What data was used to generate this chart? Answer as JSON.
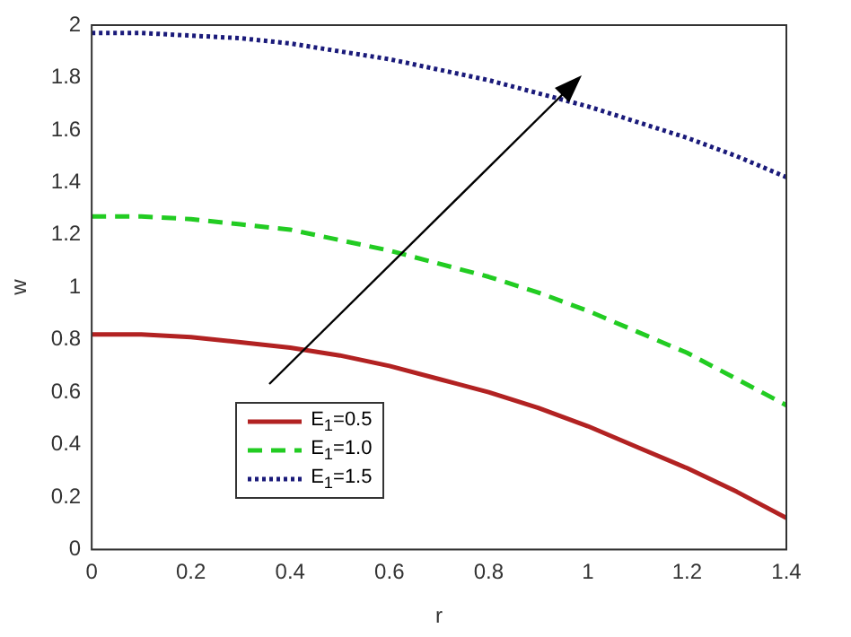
{
  "chart_data": {
    "type": "line",
    "xlabel": "r",
    "ylabel": "w",
    "x": [
      0,
      0.1,
      0.2,
      0.3,
      0.4,
      0.5,
      0.6,
      0.7,
      0.8,
      0.9,
      1.0,
      1.1,
      1.2,
      1.3,
      1.4
    ],
    "series": [
      {
        "name": "E$_{1}$=0.5",
        "color": "#b22222",
        "line_style": "solid",
        "values": [
          0.82,
          0.82,
          0.81,
          0.79,
          0.77,
          0.74,
          0.7,
          0.65,
          0.6,
          0.54,
          0.47,
          0.39,
          0.31,
          0.22,
          0.12
        ]
      },
      {
        "name": "E$_{1}$=1.0",
        "color": "#22cc22",
        "line_style": "dashed",
        "values": [
          1.27,
          1.27,
          1.26,
          1.24,
          1.22,
          1.18,
          1.14,
          1.09,
          1.04,
          0.98,
          0.91,
          0.83,
          0.75,
          0.65,
          0.55
        ]
      },
      {
        "name": "E$_{1}$=1.5",
        "color": "#1a1a7a",
        "line_style": "dotted",
        "values": [
          1.97,
          1.97,
          1.96,
          1.95,
          1.93,
          1.9,
          1.87,
          1.83,
          1.79,
          1.74,
          1.69,
          1.63,
          1.57,
          1.5,
          1.42
        ]
      }
    ],
    "xlim": [
      0,
      1.4
    ],
    "xticks": [
      0,
      0.2,
      0.4,
      0.6,
      0.8,
      1,
      1.2,
      1.4
    ],
    "ylim": [
      0,
      2
    ],
    "yticks": [
      0,
      0.2,
      0.4,
      0.6,
      0.8,
      1,
      1.2,
      1.4,
      1.6,
      1.8,
      2
    ],
    "grid": false,
    "legend": "bottom left",
    "marker": "none"
  }
}
